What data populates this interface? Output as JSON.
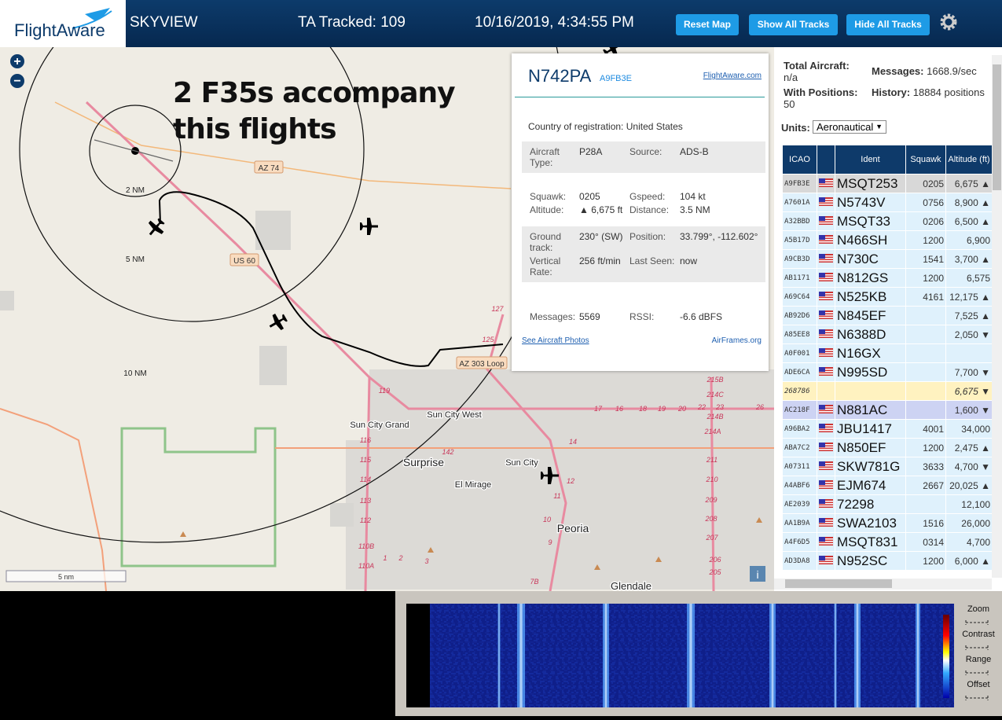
{
  "header": {
    "logo": "FlightAware",
    "app": "SKYVIEW",
    "tracked": "TA Tracked: 109",
    "datetime": "10/16/2019, 4:34:55 PM",
    "buttons": [
      "Reset Map",
      "Show All Tracks",
      "Hide All Tracks"
    ]
  },
  "map": {
    "annotation": "2 F35s accompany this flights",
    "range_labels": [
      "2 NM",
      "5 NM",
      "10 NM"
    ],
    "road_labels": [
      "AZ 74",
      "US 60",
      "AZ 303 Loop"
    ],
    "places": [
      "Sun City West",
      "Sun City Grand",
      "Surprise",
      "El Mirage",
      "Sun City",
      "Peoria",
      "Glendale"
    ],
    "route_numbers": [
      "119",
      "142",
      "116",
      "115",
      "114",
      "113",
      "112",
      "110B",
      "110A",
      "1",
      "2",
      "3",
      "14",
      "12",
      "11",
      "10",
      "9",
      "127",
      "125",
      "17",
      "16",
      "18",
      "19",
      "20",
      "22",
      "23",
      "26",
      "215B",
      "214C",
      "214B",
      "214A",
      "211",
      "210",
      "209",
      "208",
      "207",
      "206",
      "205",
      "7B"
    ],
    "scale": "5 nm",
    "info": "i"
  },
  "popup": {
    "registration": "N742PA",
    "hex": "A9FB3E",
    "link": "FlightAware.com",
    "country_label": "Country of registration:",
    "country": "United States",
    "sections": [
      [
        {
          "label": "Aircraft Type:",
          "value": "P28A"
        },
        {
          "label": "Source:",
          "value": "ADS-B"
        }
      ],
      [
        {
          "label": "Squawk:",
          "value": "0205"
        },
        {
          "label": "Gspeed:",
          "value": "104 kt"
        },
        {
          "label": "Altitude:",
          "value": "▲ 6,675 ft"
        },
        {
          "label": "Distance:",
          "value": "3.5 NM"
        }
      ],
      [
        {
          "label": "Ground track:",
          "value": "230° (SW)"
        },
        {
          "label": "Position:",
          "value": "33.799°, -112.602°"
        },
        {
          "label": "Vertical Rate:",
          "value": "256 ft/min"
        },
        {
          "label": "Last Seen:",
          "value": "now"
        }
      ],
      [
        {
          "label": "Messages:",
          "value": "5569"
        },
        {
          "label": "RSSI:",
          "value": "-6.6 dBFS"
        }
      ]
    ],
    "photos_link": "See Aircraft Photos",
    "airframes_link": "AirFrames.org"
  },
  "stats": {
    "total_label": "Total Aircraft:",
    "total": "n/a",
    "messages_label": "Messages:",
    "messages": "1668.9/sec",
    "positions_label": "With Positions:",
    "positions": "50",
    "history_label": "History:",
    "history": "18884 positions",
    "units_label": "Units:",
    "units": "Aeronautical"
  },
  "table": {
    "columns": [
      "ICAO",
      "Ident",
      "Squawk",
      "Altitude (ft)"
    ],
    "rows": [
      [
        "A9FB3E",
        "MSQT253",
        "0205",
        "6,675 ▲"
      ],
      [
        "A7601A",
        "N5743V",
        "0756",
        "8,900 ▲"
      ],
      [
        "A32BBD",
        "MSQT33",
        "0206",
        "6,500 ▲"
      ],
      [
        "A5B17D",
        "N466SH",
        "1200",
        "6,900"
      ],
      [
        "A9CB3D",
        "N730C",
        "1541",
        "3,700 ▲"
      ],
      [
        "AB1171",
        "N812GS",
        "1200",
        "6,575"
      ],
      [
        "A69C64",
        "N525KB",
        "4161",
        "12,175 ▲"
      ],
      [
        "AB92D6",
        "N845EF",
        null,
        "7,525 ▲"
      ],
      [
        "A85EE8",
        "N6388D",
        null,
        "2,050 ▼"
      ],
      [
        "A0F001",
        "N16GX",
        null,
        null
      ],
      [
        "ADE6CA",
        "N995SD",
        null,
        "7,700 ▼"
      ],
      [
        "268786",
        null,
        null,
        "6,675 ▼"
      ],
      [
        "AC218F",
        "N881AC",
        null,
        "1,600 ▼"
      ],
      [
        "A96BA2",
        "JBU1417",
        "4001",
        "34,000"
      ],
      [
        "ABA7C2",
        "N850EF",
        "1200",
        "2,475 ▲"
      ],
      [
        "A07311",
        "SKW781G",
        "3633",
        "4,700 ▼"
      ],
      [
        "A4ABF6",
        "EJM674",
        "2667",
        "20,025 ▲"
      ],
      [
        "AE2039",
        "72298",
        null,
        "12,100"
      ],
      [
        "AA1B9A",
        "SWA2103",
        "1516",
        "26,000"
      ],
      [
        "A4F6D5",
        "MSQT831",
        "0314",
        "4,700"
      ],
      [
        "AD3DA8",
        "N952SC",
        "1200",
        "6,000 ▲"
      ]
    ]
  },
  "spectrum": {
    "controls": [
      "Zoom",
      "Contrast",
      "Range",
      "Offset"
    ]
  }
}
